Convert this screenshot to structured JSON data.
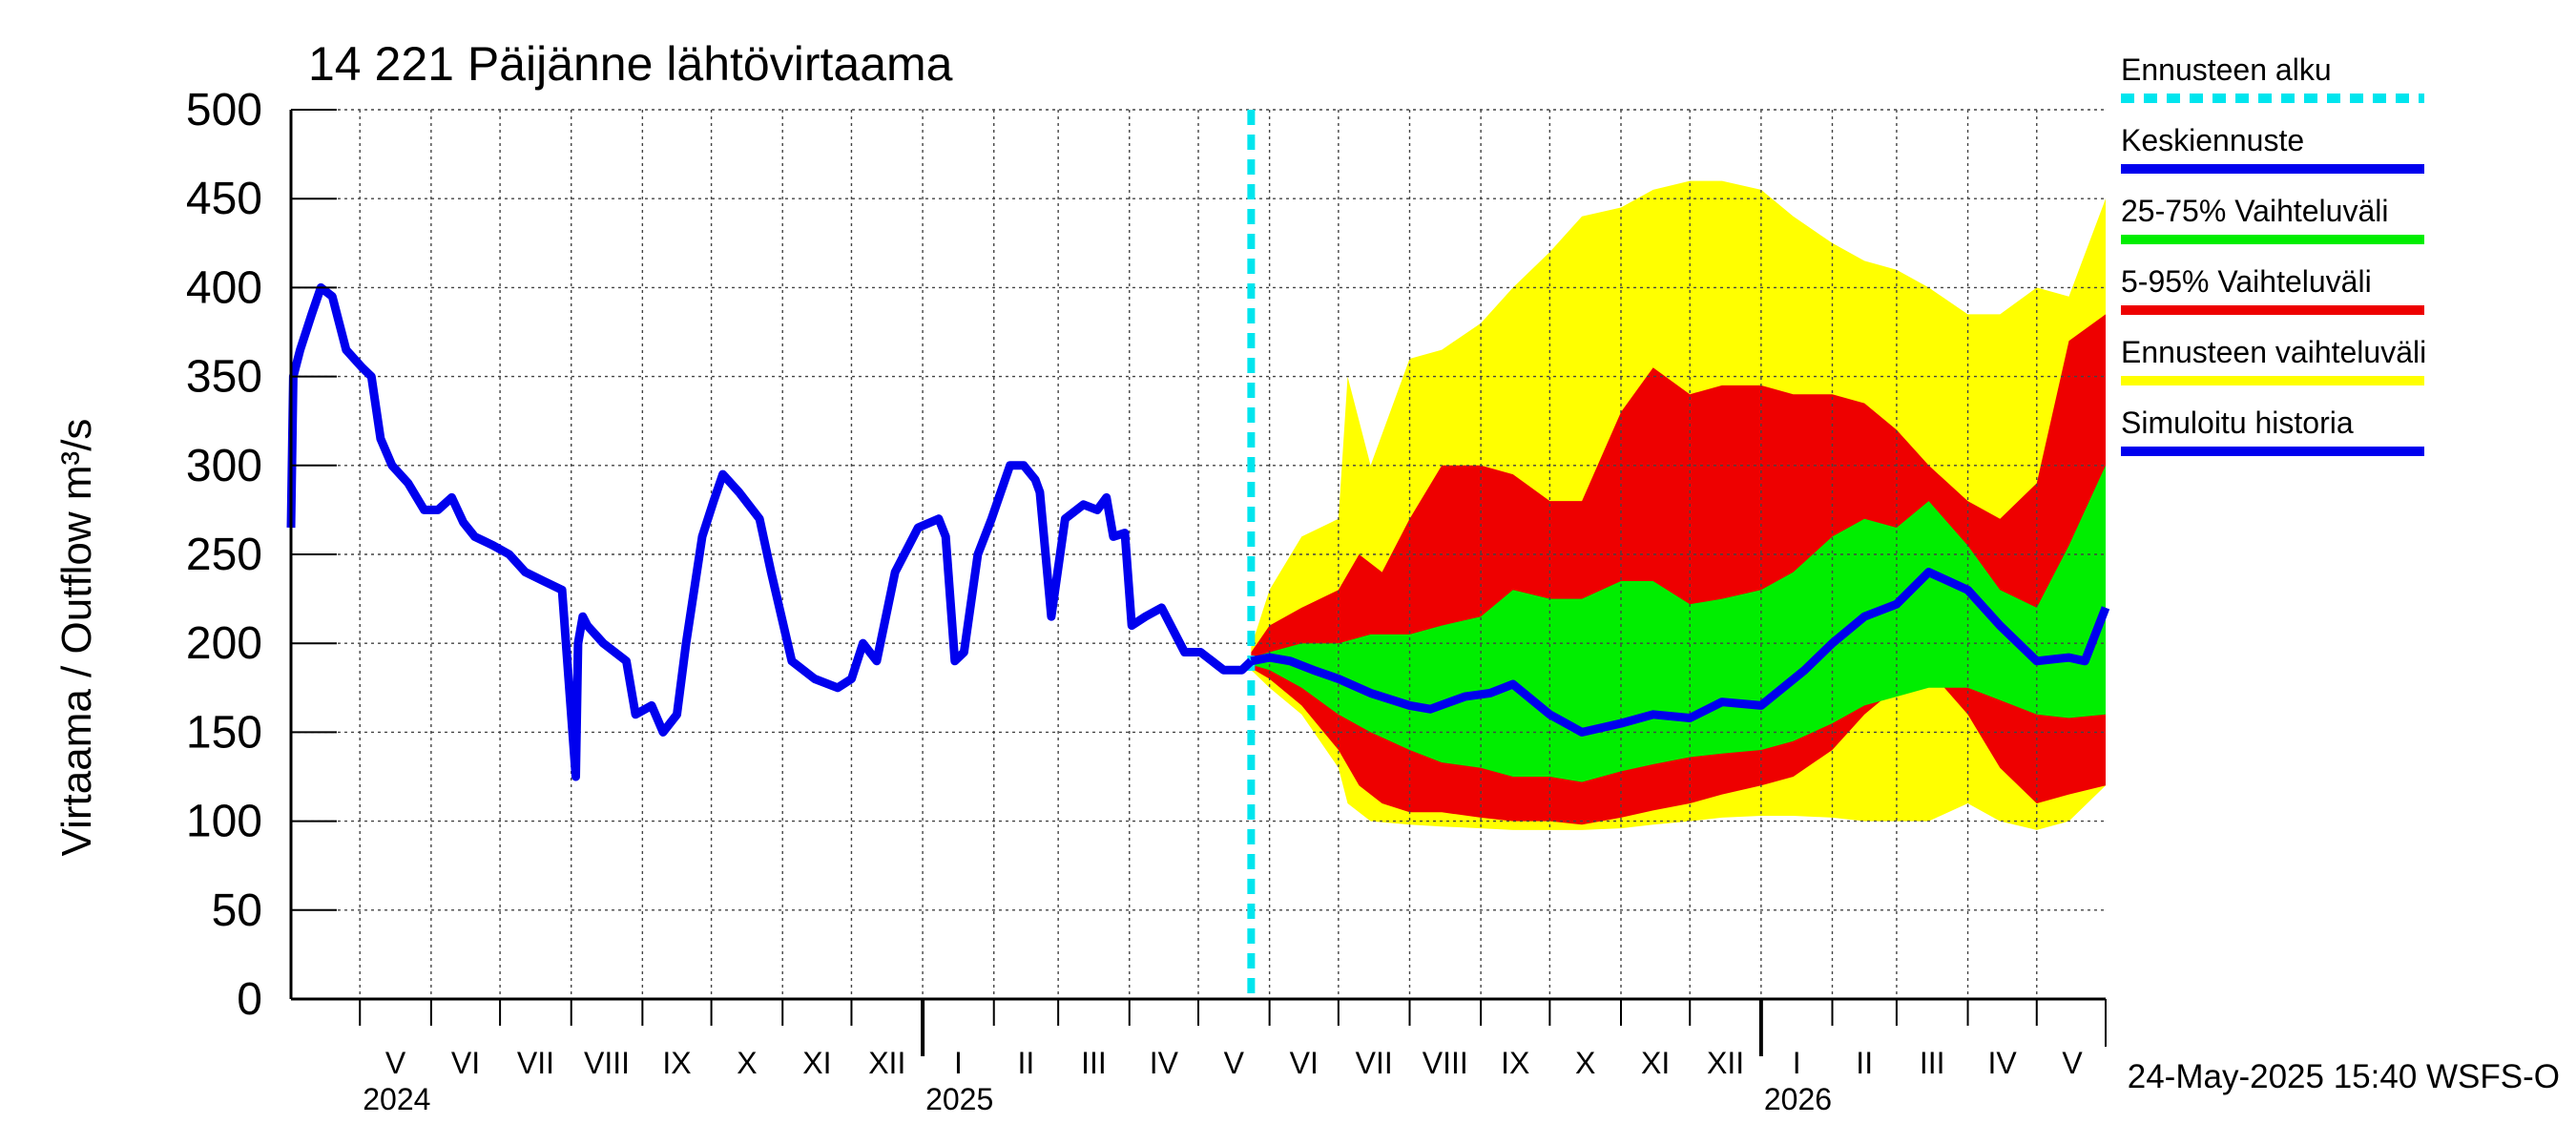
{
  "chart_data": {
    "type": "area",
    "title": "14 221 Päijänne lähtövirtaama",
    "ylabel": "Virtaama / Outflow    m³/s",
    "ylim": [
      0,
      500
    ],
    "yticks": [
      0,
      50,
      100,
      150,
      200,
      250,
      300,
      350,
      400,
      450,
      500
    ],
    "x_start": "2024-04-01",
    "x_end": "2026-05-31",
    "forecast_start": "2025-05-24",
    "months": [
      "V",
      "VI",
      "VII",
      "VIII",
      "IX",
      "X",
      "XI",
      "XII",
      "I",
      "II",
      "III",
      "IV",
      "V",
      "VI",
      "VII",
      "VIII",
      "IX",
      "X",
      "XI",
      "XII",
      "I",
      "II",
      "III",
      "IV",
      "V"
    ],
    "year_labels": [
      "2024",
      "2025",
      "2026"
    ],
    "footer": "24-May-2025 15:40 WSFS-O",
    "grid": true,
    "legend_position": "right",
    "legend": [
      {
        "label": "Ennusteen alku",
        "color": "#00e5ee",
        "style": "dashed"
      },
      {
        "label": "Keskiennuste",
        "color": "#0000ee",
        "style": "solid"
      },
      {
        "label": "25-75% Vaihteluväli",
        "color": "#00ee00",
        "style": "solid"
      },
      {
        "label": "5-95% Vaihteluväli",
        "color": "#ee0000",
        "style": "solid"
      },
      {
        "label": "Ennusteen vaihteluväli",
        "color": "#ffff00",
        "style": "solid"
      },
      {
        "label": "Simuloitu historia",
        "color": "#0000ee",
        "style": "solid"
      }
    ],
    "colors": {
      "history": "#0000ee",
      "mean": "#0000ee",
      "band_25_75": "#00ee00",
      "band_5_95": "#ee0000",
      "band_min_max": "#ffff00",
      "forecast_line": "#00e5ee"
    },
    "series": [
      {
        "name": "Simuloitu historia",
        "x": [
          "2024-04-01",
          "2024-04-02",
          "2024-04-05",
          "2024-04-10",
          "2024-04-14",
          "2024-04-19",
          "2024-04-25",
          "2024-05-02",
          "2024-05-06",
          "2024-05-10",
          "2024-05-15",
          "2024-05-22",
          "2024-05-29",
          "2024-06-04",
          "2024-06-10",
          "2024-06-15",
          "2024-06-20",
          "2024-06-28",
          "2024-07-05",
          "2024-07-12",
          "2024-07-20",
          "2024-07-28",
          "2024-08-03",
          "2024-08-04",
          "2024-08-06",
          "2024-08-08",
          "2024-08-15",
          "2024-08-25",
          "2024-08-29",
          "2024-09-05",
          "2024-09-10",
          "2024-09-16",
          "2024-09-20",
          "2024-09-27",
          "2024-10-02",
          "2024-10-06",
          "2024-10-13",
          "2024-10-22",
          "2024-10-27",
          "2024-11-05",
          "2024-11-15",
          "2024-11-25",
          "2024-12-01",
          "2024-12-06",
          "2024-12-12",
          "2024-12-20",
          "2024-12-30",
          "2025-01-08",
          "2025-01-11",
          "2025-01-15",
          "2025-01-19",
          "2025-01-25",
          "2025-01-31",
          "2025-02-08",
          "2025-02-14",
          "2025-02-19",
          "2025-02-21",
          "2025-02-26",
          "2025-03-04",
          "2025-03-12",
          "2025-03-18",
          "2025-03-22",
          "2025-03-25",
          "2025-03-30",
          "2025-04-02",
          "2025-04-08",
          "2025-04-15",
          "2025-04-25",
          "2025-05-02",
          "2025-05-12",
          "2025-05-20",
          "2025-05-24"
        ],
        "values": [
          265,
          350,
          365,
          385,
          400,
          395,
          365,
          355,
          350,
          315,
          300,
          290,
          275,
          275,
          282,
          268,
          260,
          255,
          250,
          240,
          235,
          230,
          125,
          200,
          215,
          210,
          200,
          190,
          160,
          165,
          150,
          160,
          200,
          260,
          280,
          295,
          285,
          270,
          240,
          190,
          180,
          175,
          180,
          200,
          190,
          240,
          265,
          270,
          260,
          190,
          195,
          250,
          270,
          300,
          300,
          292,
          285,
          215,
          270,
          278,
          275,
          282,
          260,
          262,
          210,
          215,
          220,
          195,
          195,
          185,
          185,
          190
        ]
      },
      {
        "name": "Keskiennuste",
        "x": [
          "2025-05-24",
          "2025-06-01",
          "2025-06-10",
          "2025-06-20",
          "2025-07-01",
          "2025-07-15",
          "2025-08-01",
          "2025-08-10",
          "2025-08-25",
          "2025-09-05",
          "2025-09-15",
          "2025-10-01",
          "2025-10-15",
          "2025-11-01",
          "2025-11-15",
          "2025-12-01",
          "2025-12-15",
          "2026-01-01",
          "2026-01-20",
          "2026-02-01",
          "2026-02-15",
          "2026-03-01",
          "2026-03-15",
          "2026-04-01",
          "2026-04-15",
          "2026-05-01",
          "2026-05-15",
          "2026-05-22",
          "2026-05-31"
        ],
        "values": [
          190,
          192,
          190,
          185,
          180,
          172,
          165,
          163,
          170,
          172,
          177,
          160,
          150,
          155,
          160,
          158,
          167,
          165,
          185,
          200,
          215,
          222,
          240,
          230,
          210,
          190,
          192,
          190,
          220
        ]
      },
      {
        "name": "25-75% Vaihteluväli",
        "x": [
          "2025-05-24",
          "2025-06-01",
          "2025-06-15",
          "2025-07-01",
          "2025-07-15",
          "2025-08-01",
          "2025-08-15",
          "2025-09-01",
          "2025-09-15",
          "2025-10-01",
          "2025-10-15",
          "2025-11-01",
          "2025-11-15",
          "2025-12-01",
          "2025-12-15",
          "2026-01-01",
          "2026-01-15",
          "2026-02-01",
          "2026-02-15",
          "2026-03-01",
          "2026-03-15",
          "2026-04-01",
          "2026-04-15",
          "2026-05-01",
          "2026-05-15",
          "2026-05-31"
        ],
        "low": [
          188,
          185,
          175,
          160,
          150,
          140,
          133,
          130,
          125,
          125,
          122,
          128,
          132,
          136,
          138,
          140,
          145,
          155,
          165,
          170,
          175,
          175,
          168,
          160,
          158,
          160
        ],
        "high": [
          192,
          195,
          200,
          200,
          205,
          205,
          210,
          215,
          230,
          225,
          225,
          235,
          235,
          222,
          225,
          230,
          240,
          260,
          270,
          265,
          280,
          255,
          230,
          220,
          255,
          300
        ]
      },
      {
        "name": "5-95% Vaihteluväli",
        "x": [
          "2025-05-24",
          "2025-06-01",
          "2025-06-15",
          "2025-07-01",
          "2025-07-10",
          "2025-07-20",
          "2025-08-01",
          "2025-08-15",
          "2025-09-01",
          "2025-09-15",
          "2025-10-01",
          "2025-10-15",
          "2025-11-01",
          "2025-11-15",
          "2025-12-01",
          "2025-12-15",
          "2026-01-01",
          "2026-01-15",
          "2026-02-01",
          "2026-02-15",
          "2026-03-01",
          "2026-03-15",
          "2026-04-01",
          "2026-04-15",
          "2026-05-01",
          "2026-05-15",
          "2026-05-31"
        ],
        "low": [
          186,
          180,
          165,
          140,
          120,
          110,
          105,
          105,
          102,
          100,
          100,
          98,
          102,
          106,
          110,
          115,
          120,
          125,
          140,
          160,
          175,
          185,
          160,
          130,
          110,
          115,
          120
        ],
        "high": [
          195,
          210,
          220,
          230,
          250,
          240,
          270,
          300,
          300,
          295,
          280,
          280,
          330,
          355,
          340,
          345,
          345,
          340,
          340,
          335,
          320,
          300,
          280,
          270,
          290,
          370,
          385
        ]
      },
      {
        "name": "Ennusteen vaihteluväli",
        "x": [
          "2025-05-24",
          "2025-06-01",
          "2025-06-15",
          "2025-07-01",
          "2025-07-05",
          "2025-07-15",
          "2025-08-01",
          "2025-08-15",
          "2025-09-01",
          "2025-09-15",
          "2025-10-01",
          "2025-10-15",
          "2025-11-01",
          "2025-11-15",
          "2025-12-01",
          "2025-12-15",
          "2026-01-01",
          "2026-01-15",
          "2026-02-01",
          "2026-02-15",
          "2026-03-01",
          "2026-03-15",
          "2026-04-01",
          "2026-04-15",
          "2026-05-01",
          "2026-05-15",
          "2026-05-31"
        ],
        "low": [
          185,
          175,
          160,
          130,
          110,
          100,
          98,
          97,
          96,
          95,
          95,
          95,
          96,
          98,
          100,
          102,
          103,
          103,
          102,
          100,
          100,
          100,
          110,
          100,
          95,
          100,
          120
        ],
        "high": [
          198,
          230,
          260,
          270,
          350,
          300,
          360,
          365,
          380,
          400,
          420,
          440,
          445,
          455,
          460,
          460,
          455,
          440,
          425,
          415,
          410,
          400,
          385,
          385,
          400,
          395,
          450
        ]
      }
    ]
  }
}
